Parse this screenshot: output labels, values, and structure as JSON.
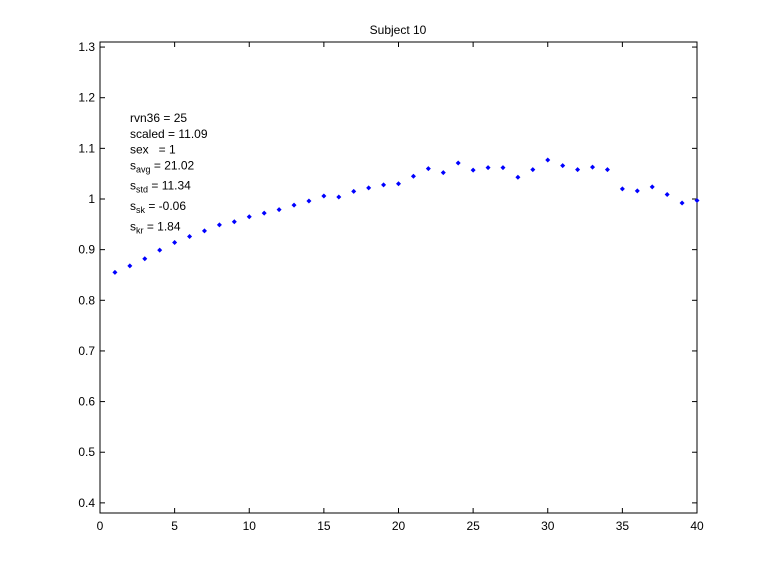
{
  "chart_data": {
    "type": "scatter",
    "title": "Subject 10",
    "xlabel": "",
    "ylabel": "",
    "xlim": [
      0,
      40
    ],
    "ylim": [
      0.38,
      1.31
    ],
    "xticks": [
      "0",
      "5",
      "10",
      "15",
      "20",
      "25",
      "30",
      "35",
      "40"
    ],
    "yticks": [
      "0.4",
      "0.5",
      "0.6",
      "0.7",
      "0.8",
      "0.9",
      "1",
      "1.1",
      "1.2",
      "1.3"
    ],
    "grid": false,
    "marker_color": "#0000ff",
    "x": [
      1,
      2,
      3,
      4,
      5,
      6,
      7,
      8,
      9,
      10,
      11,
      12,
      13,
      14,
      15,
      16,
      17,
      18,
      19,
      20,
      21,
      22,
      23,
      24,
      25,
      26,
      27,
      28,
      29,
      30,
      31,
      32,
      33,
      34,
      35,
      36,
      37,
      38,
      39,
      40
    ],
    "y": [
      0.855,
      0.868,
      0.882,
      0.899,
      0.914,
      0.926,
      0.937,
      0.949,
      0.955,
      0.965,
      0.972,
      0.979,
      0.988,
      0.996,
      1.006,
      1.004,
      1.015,
      1.022,
      1.028,
      1.03,
      1.045,
      1.06,
      1.052,
      1.071,
      1.057,
      1.062,
      1.062,
      1.043,
      1.058,
      1.077,
      1.066,
      1.058,
      1.063,
      1.058,
      1.02,
      1.016,
      1.024,
      1.009,
      0.992,
      0.997
    ],
    "annotations": [
      {
        "main": "rvn36 = 25"
      },
      {
        "main": "scaled = 11.09"
      },
      {
        "main": "sex   = 1"
      },
      {
        "main": "s",
        "sub": "avg",
        "rest": " = 21.02"
      },
      {
        "main": "s",
        "sub": "std",
        "rest": " = 11.34"
      },
      {
        "main": "s",
        "sub": "sk",
        "rest": " = -0.06"
      },
      {
        "main": "s",
        "sub": "kr",
        "rest": " = 1.84"
      }
    ]
  }
}
